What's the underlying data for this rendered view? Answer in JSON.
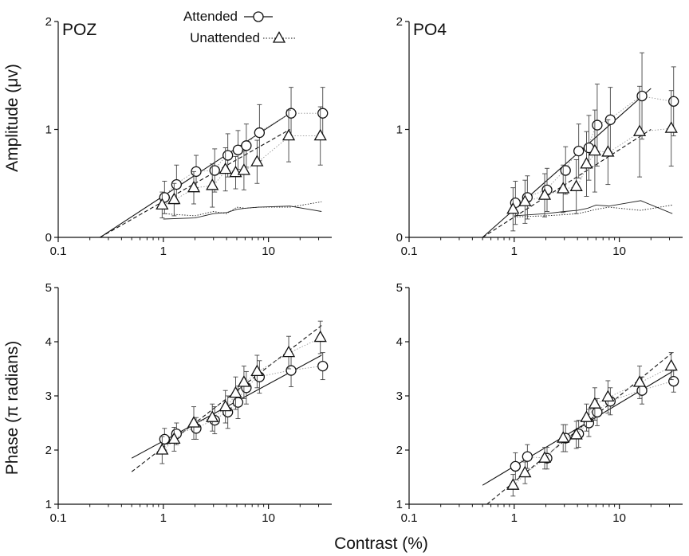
{
  "figure": {
    "ylabel_top": "Amplitude (μv)",
    "ylabel_bottom": "Phase (π radians)",
    "xlabel": "Contrast (%)",
    "legend": {
      "attended": "Attended",
      "unattended": "Unattended"
    }
  },
  "chart_data": [
    {
      "type": "scatter",
      "title": "POZ",
      "xscale": "log",
      "xlim": [
        0.1,
        40
      ],
      "ylim": [
        0,
        2
      ],
      "xticks": [
        "0.1",
        "1",
        "10"
      ],
      "yticks": [
        "0",
        "1",
        "2"
      ],
      "legend": {
        "entries": [
          "Attended",
          "Unattended"
        ],
        "placement": "top"
      },
      "series": [
        {
          "name": "Attended",
          "marker": "circle",
          "line": "solid",
          "x": [
            1,
            1.3,
            2,
            3,
            4,
            5,
            6,
            8,
            16,
            32
          ],
          "y": [
            0.37,
            0.49,
            0.61,
            0.62,
            0.76,
            0.81,
            0.85,
            0.97,
            1.15,
            1.15
          ],
          "err": [
            0.15,
            0.18,
            0.15,
            0.2,
            0.2,
            0.18,
            0.2,
            0.26,
            0.24,
            0.24
          ]
        },
        {
          "name": "Unattended",
          "marker": "triangle",
          "line": "dashed",
          "x": [
            1,
            1.3,
            2,
            3,
            4,
            5,
            6,
            8,
            16,
            32
          ],
          "y": [
            0.3,
            0.35,
            0.46,
            0.48,
            0.63,
            0.6,
            0.62,
            0.7,
            0.94,
            0.94
          ],
          "err": [
            0.12,
            0.15,
            0.15,
            0.2,
            0.2,
            0.15,
            0.18,
            0.2,
            0.24,
            0.27
          ]
        }
      ],
      "fits": [
        {
          "style": "solid",
          "x": [
            0.25,
            16
          ],
          "y": [
            0,
            1.15
          ]
        },
        {
          "style": "dashed",
          "x": [
            0.25,
            16
          ],
          "y": [
            0,
            1.0
          ]
        }
      ],
      "noise": [
        {
          "style": "solid",
          "x": [
            1,
            2,
            3,
            4,
            5,
            6,
            8,
            16,
            32
          ],
          "y": [
            0.17,
            0.18,
            0.22,
            0.23,
            0.26,
            0.27,
            0.28,
            0.29,
            0.24
          ]
        },
        {
          "style": "dotted",
          "x": [
            1,
            2,
            3,
            4,
            5,
            6,
            8,
            16,
            32
          ],
          "y": [
            0.22,
            0.2,
            0.24,
            0.22,
            0.28,
            0.27,
            0.28,
            0.28,
            0.33
          ]
        }
      ]
    },
    {
      "type": "scatter",
      "title": "PO4",
      "xscale": "log",
      "xlim": [
        0.1,
        40
      ],
      "ylim": [
        0,
        2
      ],
      "xticks": [
        "0.1",
        "1",
        "10"
      ],
      "yticks": [
        "0",
        "1",
        "2"
      ],
      "series": [
        {
          "name": "Attended",
          "marker": "circle",
          "line": "solid",
          "x": [
            1,
            1.3,
            2,
            3,
            4,
            5,
            6,
            8,
            16,
            32
          ],
          "y": [
            0.32,
            0.37,
            0.44,
            0.62,
            0.8,
            0.83,
            1.04,
            1.09,
            1.31,
            1.26
          ],
          "err": [
            0.2,
            0.2,
            0.2,
            0.22,
            0.25,
            0.3,
            0.38,
            0.3,
            0.4,
            0.32
          ]
        },
        {
          "name": "Unattended",
          "marker": "triangle",
          "line": "dashed",
          "x": [
            1,
            1.3,
            2,
            3,
            4,
            5,
            6,
            8,
            16,
            32
          ],
          "y": [
            0.26,
            0.33,
            0.39,
            0.45,
            0.47,
            0.68,
            0.8,
            0.79,
            0.98,
            1.01
          ],
          "err": [
            0.2,
            0.2,
            0.2,
            0.22,
            0.25,
            0.3,
            0.38,
            0.3,
            0.42,
            0.35
          ]
        }
      ],
      "fits": [
        {
          "style": "solid",
          "x": [
            0.5,
            20
          ],
          "y": [
            0,
            1.38
          ]
        },
        {
          "style": "dashed",
          "x": [
            0.5,
            20
          ],
          "y": [
            0,
            1.0
          ]
        }
      ],
      "noise": [
        {
          "style": "solid",
          "x": [
            1,
            2,
            3,
            4,
            5,
            6,
            8,
            16,
            32
          ],
          "y": [
            0.2,
            0.22,
            0.24,
            0.25,
            0.27,
            0.3,
            0.29,
            0.34,
            0.22
          ]
        },
        {
          "style": "dotted",
          "x": [
            1,
            2,
            3,
            4,
            5,
            6,
            8,
            16,
            32
          ],
          "y": [
            0.19,
            0.2,
            0.21,
            0.22,
            0.24,
            0.26,
            0.28,
            0.25,
            0.3
          ]
        }
      ]
    },
    {
      "type": "scatter",
      "xscale": "log",
      "xlim": [
        0.1,
        40
      ],
      "ylim": [
        1,
        5
      ],
      "xticks": [
        "0.1",
        "1",
        "10"
      ],
      "yticks": [
        "1",
        "2",
        "3",
        "4",
        "5"
      ],
      "series": [
        {
          "name": "Attended",
          "marker": "circle",
          "line": "solid",
          "x": [
            1,
            1.3,
            2,
            3,
            4,
            5,
            6,
            8,
            16,
            32
          ],
          "y": [
            2.2,
            2.3,
            2.4,
            2.55,
            2.7,
            2.88,
            3.15,
            3.35,
            3.47,
            3.55
          ],
          "err": [
            0.2,
            0.2,
            0.2,
            0.25,
            0.3,
            0.3,
            0.3,
            0.3,
            0.3,
            0.25
          ]
        },
        {
          "name": "Unattended",
          "marker": "triangle",
          "line": "dashed",
          "x": [
            1,
            1.3,
            2,
            3,
            4,
            5,
            6,
            8,
            16,
            32
          ],
          "y": [
            2.0,
            2.2,
            2.5,
            2.6,
            2.8,
            3.05,
            3.25,
            3.45,
            3.8,
            4.08
          ],
          "err": [
            0.25,
            0.22,
            0.3,
            0.25,
            0.3,
            0.3,
            0.3,
            0.3,
            0.3,
            0.3
          ]
        }
      ],
      "fits": [
        {
          "style": "solid",
          "x": [
            0.5,
            32
          ],
          "y": [
            1.85,
            3.75
          ]
        },
        {
          "style": "dashed",
          "x": [
            0.5,
            32
          ],
          "y": [
            1.6,
            4.3
          ]
        }
      ]
    },
    {
      "type": "scatter",
      "xscale": "log",
      "xlim": [
        0.1,
        40
      ],
      "ylim": [
        1,
        5
      ],
      "xticks": [
        "0.1",
        "1",
        "10"
      ],
      "yticks": [
        "1",
        "2",
        "3",
        "4",
        "5"
      ],
      "series": [
        {
          "name": "Attended",
          "marker": "circle",
          "line": "solid",
          "x": [
            1,
            1.3,
            2,
            3,
            4,
            5,
            6,
            8,
            16,
            32
          ],
          "y": [
            1.7,
            1.88,
            1.85,
            2.22,
            2.3,
            2.5,
            2.7,
            2.9,
            3.1,
            3.27
          ],
          "err": [
            0.25,
            0.22,
            0.2,
            0.25,
            0.25,
            0.25,
            0.25,
            0.25,
            0.25,
            0.2
          ]
        },
        {
          "name": "Unattended",
          "marker": "triangle",
          "line": "dashed",
          "x": [
            1,
            1.3,
            2,
            3,
            4,
            5,
            6,
            8,
            16,
            32
          ],
          "y": [
            1.35,
            1.58,
            1.85,
            2.22,
            2.28,
            2.6,
            2.85,
            2.98,
            3.25,
            3.55
          ],
          "err": [
            0.2,
            0.2,
            0.2,
            0.25,
            0.25,
            0.25,
            0.3,
            0.3,
            0.3,
            0.25
          ]
        }
      ],
      "fits": [
        {
          "style": "solid",
          "x": [
            0.5,
            32
          ],
          "y": [
            1.35,
            3.45
          ]
        },
        {
          "style": "dashed",
          "x": [
            0.55,
            32
          ],
          "y": [
            1.0,
            3.8
          ]
        }
      ]
    }
  ]
}
